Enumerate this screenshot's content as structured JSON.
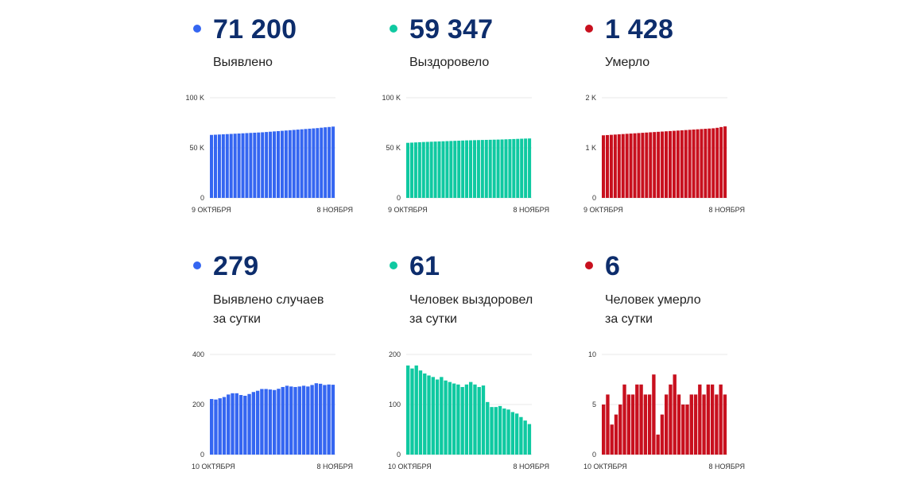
{
  "colors": {
    "blue": "#3566f1",
    "green": "#0fc9a1",
    "red": "#c8101e",
    "number": "#0d2d6c"
  },
  "panels": [
    {
      "value": "71 200",
      "label_lines": [
        "Выявлено"
      ],
      "color": "#3566f1",
      "chart_data": {
        "type": "bar",
        "title": "",
        "y_ticks": [
          "100 K",
          "50 K",
          "0"
        ],
        "ylim": [
          0,
          100000
        ],
        "x_start": "9 ОКТЯБРЯ",
        "x_end": "8 НОЯБРЯ",
        "values": [
          62900,
          63100,
          63300,
          63500,
          63700,
          63900,
          64100,
          64300,
          64500,
          64700,
          64900,
          65100,
          65300,
          65500,
          65800,
          66100,
          66400,
          66700,
          67000,
          67300,
          67600,
          67900,
          68200,
          68500,
          68800,
          69100,
          69400,
          69700,
          70100,
          70500,
          70800,
          71200
        ]
      }
    },
    {
      "value": "59 347",
      "label_lines": [
        "Выздоровело"
      ],
      "color": "#0fc9a1",
      "chart_data": {
        "type": "bar",
        "title": "",
        "y_ticks": [
          "100 K",
          "50 K",
          "0"
        ],
        "ylim": [
          0,
          100000
        ],
        "x_start": "9 ОКТЯБРЯ",
        "x_end": "8 НОЯБРЯ",
        "values": [
          55000,
          55200,
          55400,
          55600,
          55800,
          55950,
          56100,
          56250,
          56400,
          56550,
          56700,
          56850,
          57000,
          57150,
          57300,
          57450,
          57550,
          57650,
          57750,
          57850,
          57950,
          58050,
          58150,
          58250,
          58350,
          58500,
          58650,
          58800,
          58950,
          59100,
          59250,
          59347
        ]
      }
    },
    {
      "value": "1 428",
      "label_lines": [
        "Умерло"
      ],
      "color": "#c8101e",
      "chart_data": {
        "type": "bar",
        "title": "",
        "y_ticks": [
          "2 K",
          "1 K",
          "0"
        ],
        "ylim": [
          0,
          2000
        ],
        "x_start": "9 ОКТЯБРЯ",
        "x_end": "8 НОЯБРЯ",
        "values": [
          1250,
          1255,
          1260,
          1265,
          1270,
          1275,
          1280,
          1285,
          1290,
          1295,
          1300,
          1305,
          1310,
          1315,
          1320,
          1325,
          1330,
          1335,
          1340,
          1345,
          1350,
          1355,
          1360,
          1365,
          1370,
          1375,
          1380,
          1385,
          1390,
          1400,
          1415,
          1428
        ]
      }
    },
    {
      "value": "279",
      "label_lines": [
        "Выявлено случаев",
        "за сутки"
      ],
      "color": "#3566f1",
      "chart_data": {
        "type": "bar",
        "title": "",
        "y_ticks": [
          "400",
          "200",
          "0"
        ],
        "ylim": [
          0,
          400
        ],
        "x_start": "10 ОКТЯБРЯ",
        "x_end": "8 НОЯБРЯ",
        "values": [
          222,
          220,
          225,
          230,
          240,
          245,
          245,
          238,
          235,
          242,
          250,
          255,
          262,
          262,
          260,
          258,
          263,
          270,
          275,
          272,
          270,
          272,
          275,
          272,
          278,
          285,
          283,
          278,
          280,
          279
        ]
      }
    },
    {
      "value": "61",
      "label_lines": [
        "Человек выздоровел",
        "за сутки"
      ],
      "color": "#0fc9a1",
      "chart_data": {
        "type": "bar",
        "title": "",
        "y_ticks": [
          "200",
          "100",
          "0"
        ],
        "ylim": [
          0,
          200
        ],
        "x_start": "10 ОКТЯБРЯ",
        "x_end": "8 НОЯБРЯ",
        "values": [
          178,
          172,
          178,
          168,
          162,
          158,
          155,
          150,
          155,
          148,
          145,
          142,
          140,
          135,
          140,
          145,
          140,
          135,
          138,
          105,
          95,
          95,
          97,
          92,
          90,
          85,
          82,
          75,
          68,
          61
        ]
      }
    },
    {
      "value": "6",
      "label_lines": [
        "Человек умерло",
        "за сутки"
      ],
      "color": "#c8101e",
      "chart_data": {
        "type": "bar",
        "title": "",
        "y_ticks": [
          "10",
          "5",
          "0"
        ],
        "ylim": [
          0,
          10
        ],
        "x_start": "10 ОКТЯБРЯ",
        "x_end": "8 НОЯБРЯ",
        "values": [
          5,
          6,
          3,
          4,
          5,
          7,
          6,
          6,
          7,
          7,
          6,
          6,
          8,
          2,
          4,
          6,
          7,
          8,
          6,
          5,
          5,
          6,
          6,
          7,
          6,
          7,
          7,
          6,
          7,
          6
        ]
      }
    }
  ]
}
